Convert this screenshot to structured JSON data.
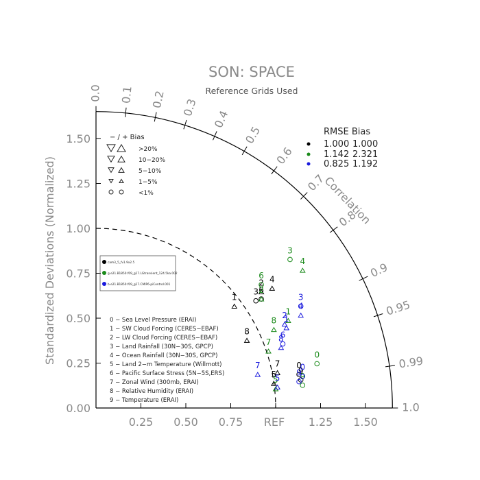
{
  "chart_data": {
    "type": "scatter",
    "title": "SON: SPACE",
    "subtitle": "Reference Grids Used",
    "ylabel": "Standardized Deviations (Normalized)",
    "xref_label": "REF",
    "corr_label": "Correlation",
    "std_range": [
      0,
      1.65
    ],
    "std_ticks": [
      "0.00",
      "0.25",
      "0.50",
      "0.75",
      "1.00",
      "1.25",
      "1.50"
    ],
    "x_ticks": [
      "0.25",
      "0.50",
      "0.75",
      "1.25",
      "1.50"
    ],
    "corr_ticks": [
      "0.0",
      "0.1",
      "0.2",
      "0.3",
      "0.4",
      "0.5",
      "0.6",
      "0.7",
      "0.8",
      "0.9",
      "0.95",
      "0.99",
      "1.0"
    ],
    "bias_legend": {
      "header": "−  /  +    Bias",
      "rows": [
        ">20%",
        "10−20%",
        "5−10%",
        "1−5%",
        "<1%"
      ]
    },
    "rmse_legend": {
      "header": "RMSE  Bias",
      "rows": [
        {
          "color": "#000000",
          "rmse": "1.000",
          "bias": "1.000"
        },
        {
          "color": "#1a8a1a",
          "rmse": "1.142",
          "bias": "2.321"
        },
        {
          "color": "#1a1add",
          "rmse": "0.825",
          "bias": "1.192"
        }
      ]
    },
    "case_legend": [
      {
        "color": "#000000",
        "name": "cam3_5_fv1.9x2.5"
      },
      {
        "color": "#1a8a1a",
        "name": "g.e21.B1850.f09_g17.LGtransient_124.5ka.002"
      },
      {
        "color": "#1a1add",
        "name": "b.e21.B1850.f09_g17.CMIP6-piControl.001"
      }
    ],
    "variables": [
      "0 − Sea Level Pressure (ERAI)",
      "1 − SW Cloud Forcing (CERES−EBAF)",
      "2 − LW Cloud Forcing (CERES−EBAF)",
      "3 − Land Rainfall (30N−30S, GPCP)",
      "4 − Ocean Rainfall (30N−30S, GPCP)",
      "5 − Land 2−m Temperature (Willmott)",
      "6 − Pacific Surface Stress (5N−5S,ERS)",
      "7 − Zonal Wind (300mb, ERAI)",
      "8 − Relative Humidity (ERAI)",
      "9 − Temperature (ERAI)"
    ],
    "series": [
      {
        "name": "cam3_5_fv1.9x2.5",
        "color": "#000000",
        "points": [
          {
            "label": "0",
            "x": 1.13,
            "y": 0.24
          },
          {
            "label": "1",
            "x": 0.77,
            "y": 0.62
          },
          {
            "label": "2",
            "x": 0.92,
            "y": 0.7
          },
          {
            "label": "3",
            "x": 0.89,
            "y": 0.65
          },
          {
            "label": "4",
            "x": 0.98,
            "y": 0.72
          },
          {
            "label": "5",
            "x": 0.99,
            "y": 0.19
          },
          {
            "label": "6",
            "x": 0.92,
            "y": 0.66
          },
          {
            "label": "7",
            "x": 1.01,
            "y": 0.25
          },
          {
            "label": "8",
            "x": 0.84,
            "y": 0.43
          },
          {
            "label": "9",
            "x": 1.14,
            "y": 0.21
          }
        ]
      },
      {
        "name": "g.e21.B1850.f09_g17.LGtransient_124.5ka.002",
        "color": "#1a8a1a",
        "points": [
          {
            "label": "0",
            "x": 1.23,
            "y": 0.3
          },
          {
            "label": "1",
            "x": 1.07,
            "y": 0.54
          },
          {
            "label": "2",
            "x": 0.92,
            "y": 0.66
          },
          {
            "label": "3",
            "x": 1.08,
            "y": 0.88
          },
          {
            "label": "4",
            "x": 1.15,
            "y": 0.82
          },
          {
            "label": "5",
            "x": 1.0,
            "y": 0.16
          },
          {
            "label": "6",
            "x": 0.92,
            "y": 0.74
          },
          {
            "label": "7",
            "x": 0.96,
            "y": 0.37
          },
          {
            "label": "8",
            "x": 0.99,
            "y": 0.49
          },
          {
            "label": "9",
            "x": 1.15,
            "y": 0.18
          }
        ]
      },
      {
        "name": "b.e21.B1850.f09_g17.CMIP6-piControl.001",
        "color": "#1a1add",
        "points": [
          {
            "label": "0",
            "x": 1.15,
            "y": 0.23
          },
          {
            "label": "1",
            "x": 1.06,
            "y": 0.5
          },
          {
            "label": "2",
            "x": 1.05,
            "y": 0.52
          },
          {
            "label": "3",
            "x": 1.14,
            "y": 0.62
          },
          {
            "label": "4",
            "x": 1.14,
            "y": 0.57
          },
          {
            "label": "5",
            "x": 1.01,
            "y": 0.17
          },
          {
            "label": "6",
            "x": 1.04,
            "y": 0.41
          },
          {
            "label": "7",
            "x": 0.9,
            "y": 0.24
          },
          {
            "label": "8",
            "x": 1.03,
            "y": 0.39
          },
          {
            "label": "9",
            "x": 1.13,
            "y": 0.2
          }
        ]
      }
    ]
  }
}
